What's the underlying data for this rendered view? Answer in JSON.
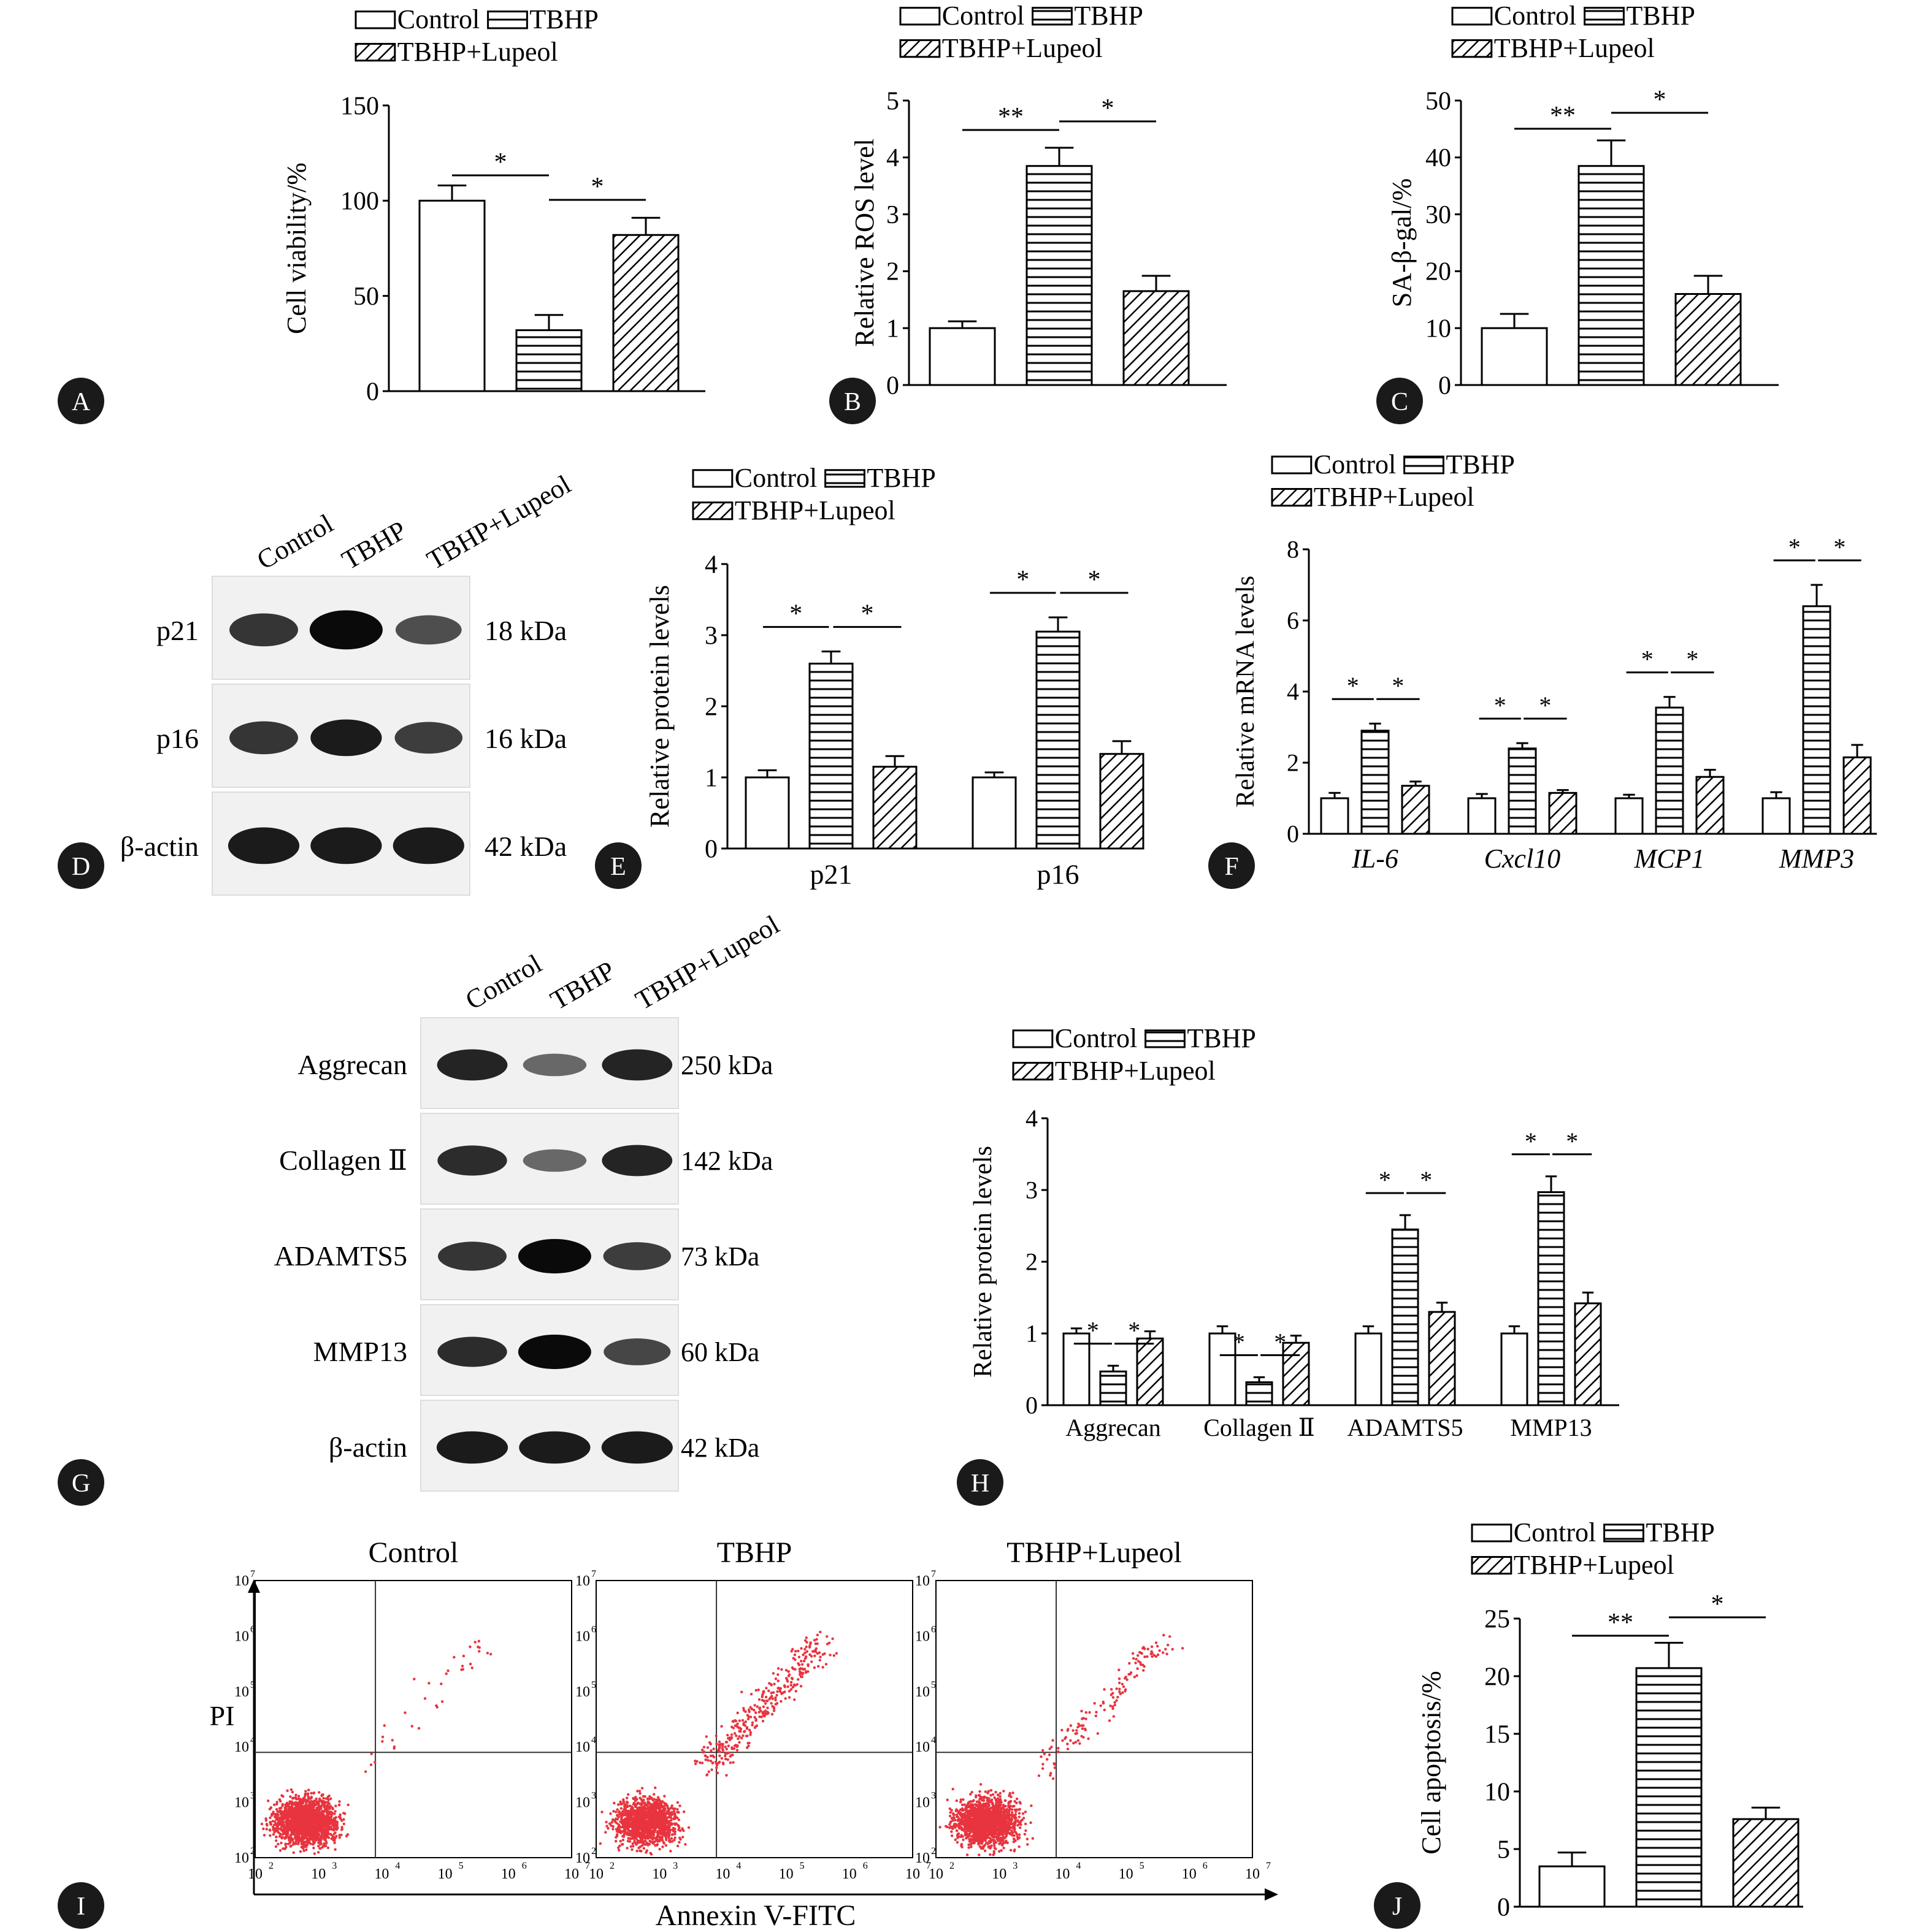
{
  "panels": {
    "A": {
      "letter": "A"
    },
    "B": {
      "letter": "B"
    },
    "C": {
      "letter": "C"
    },
    "D": {
      "letter": "D"
    },
    "E": {
      "letter": "E"
    },
    "F": {
      "letter": "F"
    },
    "G": {
      "letter": "G"
    },
    "H": {
      "letter": "H"
    },
    "I": {
      "letter": "I"
    },
    "J": {
      "letter": "J"
    }
  },
  "legend": {
    "control": "Control",
    "tbhp": "TBHP",
    "tbhp_lupeol": "TBHP+Lupeol"
  },
  "colors": {
    "ink": "#000000",
    "background": "#ffffff",
    "panel_label_bg": "#1a1a1a",
    "flow_dots": "#e8343f"
  },
  "blot_D": {
    "lanes": [
      "Control",
      "TBHP",
      "TBHP+Lupeol"
    ],
    "rows": [
      {
        "protein": "p21",
        "size": "18 kDa",
        "intensity": [
          0.75,
          1.0,
          0.6
        ]
      },
      {
        "protein": "p16",
        "size": "16 kDa",
        "intensity": [
          0.75,
          0.9,
          0.7
        ]
      },
      {
        "protein": "β-actin",
        "size": "42 kDa",
        "intensity": [
          0.9,
          0.9,
          0.9
        ]
      }
    ]
  },
  "blot_G": {
    "lanes": [
      "Control",
      "TBHP",
      "TBHP+Lupeol"
    ],
    "rows": [
      {
        "protein": "Aggrecan",
        "size": "250 kDa",
        "intensity": [
          0.85,
          0.45,
          0.85
        ]
      },
      {
        "protein": "Collagen Ⅱ",
        "size": "142 kDa",
        "intensity": [
          0.8,
          0.45,
          0.85
        ]
      },
      {
        "protein": "ADAMTS5",
        "size": "73 kDa",
        "intensity": [
          0.75,
          1.0,
          0.7
        ]
      },
      {
        "protein": "MMP13",
        "size": "60 kDa",
        "intensity": [
          0.8,
          1.0,
          0.65
        ]
      },
      {
        "protein": "β-actin",
        "size": "42 kDa",
        "intensity": [
          0.9,
          0.9,
          0.9
        ]
      }
    ]
  },
  "flow": {
    "titles": [
      "Control",
      "TBHP",
      "TBHP+Lupeol"
    ],
    "xlabel": "Annexin V-FITC",
    "ylabel": "PI",
    "ticks": [
      "10",
      "10",
      "10",
      "10",
      "10",
      "10"
    ],
    "tick_exps": [
      "2",
      "3",
      "4",
      "5",
      "6",
      "7"
    ],
    "upper_right_fraction": [
      0.03,
      0.2,
      0.08
    ]
  },
  "chart_data": [
    {
      "id": "A",
      "type": "bar",
      "categories": [
        "Control",
        "TBHP",
        "TBHP+Lupeol"
      ],
      "values": [
        100,
        32,
        82
      ],
      "errors": [
        8,
        8,
        9
      ],
      "ylabel": "Cell viability/%",
      "ylim": [
        0,
        150
      ],
      "yticks": [
        0,
        50,
        100,
        150
      ],
      "significance": [
        {
          "from": 0,
          "to": 1,
          "label": "*"
        },
        {
          "from": 1,
          "to": 2,
          "label": "*"
        }
      ]
    },
    {
      "id": "B",
      "type": "bar",
      "categories": [
        "Control",
        "TBHP",
        "TBHP+Lupeol"
      ],
      "values": [
        1.0,
        3.85,
        1.65
      ],
      "errors": [
        0.12,
        0.32,
        0.27
      ],
      "ylabel": "Relative ROS level",
      "ylim": [
        0,
        5
      ],
      "yticks": [
        0,
        1,
        2,
        3,
        4,
        5
      ],
      "significance": [
        {
          "from": 0,
          "to": 1,
          "label": "**"
        },
        {
          "from": 1,
          "to": 2,
          "label": "*"
        }
      ]
    },
    {
      "id": "C",
      "type": "bar",
      "categories": [
        "Control",
        "TBHP",
        "TBHP+Lupeol"
      ],
      "values": [
        10,
        38.5,
        16
      ],
      "errors": [
        2.5,
        4.5,
        3.2
      ],
      "ylabel": "SA-β-gal/%",
      "ylim": [
        0,
        50
      ],
      "yticks": [
        0,
        10,
        20,
        30,
        40,
        50
      ],
      "significance": [
        {
          "from": 0,
          "to": 1,
          "label": "**"
        },
        {
          "from": 1,
          "to": 2,
          "label": "*"
        }
      ]
    },
    {
      "id": "E",
      "type": "bar",
      "categories": [
        "p21",
        "p16"
      ],
      "series": [
        {
          "name": "Control",
          "values": [
            1.0,
            1.0
          ],
          "errors": [
            0.1,
            0.07
          ]
        },
        {
          "name": "TBHP",
          "values": [
            2.6,
            3.05
          ],
          "errors": [
            0.17,
            0.2
          ]
        },
        {
          "name": "TBHP+Lupeol",
          "values": [
            1.15,
            1.33
          ],
          "errors": [
            0.15,
            0.18
          ]
        }
      ],
      "ylabel": "Relative protein levels",
      "ylim": [
        0,
        4
      ],
      "yticks": [
        0,
        1,
        2,
        3,
        4
      ],
      "significance": "* between Control–TBHP and TBHP–TBHP+Lupeol for each protein"
    },
    {
      "id": "F",
      "type": "bar",
      "categories": [
        "IL-6",
        "Cxcl10",
        "MCP1",
        "MMP3"
      ],
      "series": [
        {
          "name": "Control",
          "values": [
            1.0,
            1.0,
            1.0,
            1.0
          ],
          "errors": [
            0.15,
            0.12,
            0.1,
            0.17
          ]
        },
        {
          "name": "TBHP",
          "values": [
            2.9,
            2.4,
            3.55,
            6.4
          ],
          "errors": [
            0.2,
            0.15,
            0.3,
            0.6
          ]
        },
        {
          "name": "TBHP+Lupeol",
          "values": [
            1.35,
            1.15,
            1.6,
            2.15
          ],
          "errors": [
            0.12,
            0.08,
            0.2,
            0.35
          ]
        }
      ],
      "ylabel": "Relative mRNA levels",
      "ylim": [
        0,
        8
      ],
      "yticks": [
        0,
        2,
        4,
        6,
        8
      ],
      "significance": "* between Control–TBHP and TBHP–TBHP+Lupeol for each gene"
    },
    {
      "id": "H",
      "type": "bar",
      "categories": [
        "Aggrecan",
        "Collagen Ⅱ",
        "ADAMTS5",
        "MMP13"
      ],
      "series": [
        {
          "name": "Control",
          "values": [
            1.0,
            1.0,
            1.0,
            1.0
          ],
          "errors": [
            0.07,
            0.1,
            0.1,
            0.1
          ]
        },
        {
          "name": "TBHP",
          "values": [
            0.47,
            0.32,
            2.45,
            2.97
          ],
          "errors": [
            0.08,
            0.07,
            0.2,
            0.22
          ]
        },
        {
          "name": "TBHP+Lupeol",
          "values": [
            0.93,
            0.87,
            1.3,
            1.42
          ],
          "errors": [
            0.1,
            0.1,
            0.13,
            0.15
          ]
        }
      ],
      "ylabel": "Relative protein levels",
      "ylim": [
        0,
        4
      ],
      "yticks": [
        0,
        1,
        2,
        3,
        4
      ],
      "significance": "* between Control–TBHP and TBHP–TBHP+Lupeol for each protein"
    },
    {
      "id": "J",
      "type": "bar",
      "categories": [
        "Control",
        "TBHP",
        "TBHP+Lupeol"
      ],
      "values": [
        3.5,
        20.7,
        7.6
      ],
      "errors": [
        1.2,
        2.2,
        1.0
      ],
      "ylabel": "Cell apoptosis/%",
      "ylim": [
        0,
        25
      ],
      "yticks": [
        0,
        5,
        10,
        15,
        20,
        25
      ],
      "significance": [
        {
          "from": 0,
          "to": 1,
          "label": "**"
        },
        {
          "from": 1,
          "to": 2,
          "label": "*"
        }
      ]
    }
  ]
}
